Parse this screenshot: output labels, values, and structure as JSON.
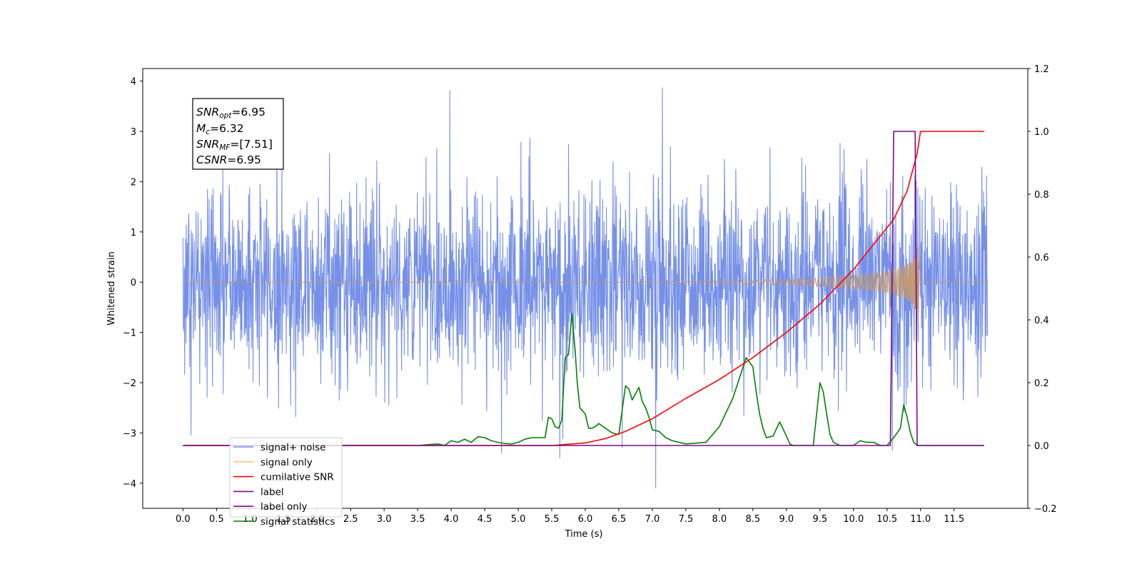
{
  "chart_data": {
    "type": "line",
    "xlabel": "Time (s)",
    "ylabel_left": "Whitened strain",
    "ylabel_right": "",
    "xlim": [
      -0.6,
      12.6
    ],
    "ylim_left": [
      -4.5,
      4.25
    ],
    "ylim_right": [
      -0.2,
      1.2
    ],
    "x_ticks": [
      "0.0",
      "0.5",
      "1.0",
      "1.5",
      "2.0",
      "2.5",
      "3.0",
      "3.5",
      "4.0",
      "4.5",
      "5.0",
      "5.5",
      "6.0",
      "6.5",
      "7.0",
      "7.5",
      "8.0",
      "8.5",
      "9.0",
      "9.5",
      "10.0",
      "10.5",
      "11.0",
      "11.5"
    ],
    "y_ticks_left": [
      "4",
      "3",
      "2",
      "1",
      "0",
      "−1",
      "−2",
      "−3",
      "−4"
    ],
    "y_ticks_right": [
      "1.2",
      "1.0",
      "0.8",
      "0.6",
      "0.4",
      "0.2",
      "0.0",
      "−0.2"
    ],
    "grid": false,
    "legend_position": "lower-left",
    "annotation": {
      "snr_opt": {
        "symbol": "SNR",
        "sub": "opt",
        "value": "=6.95"
      },
      "mc": {
        "symbol": "M",
        "sub": "c",
        "value": "=6.32"
      },
      "snr_mf": {
        "symbol": "SNR",
        "sub": "MF",
        "value": "=[7.51]"
      },
      "csnr": {
        "symbol": "CSNR",
        "sub": "",
        "value": "=6.95"
      }
    },
    "series": [
      {
        "name": "signal+ noise",
        "axis": "left",
        "color": "#6a87e6",
        "style": "noise",
        "x_range": [
          0.0,
          12.0
        ],
        "amplitude_envelope": [
          -3.3,
          3.8
        ],
        "outliers": [
          [
            0.12,
            -3.05
          ],
          [
            3.98,
            3.82
          ],
          [
            4.75,
            -3.4
          ],
          [
            5.62,
            -3.5
          ],
          [
            6.55,
            -3.3
          ],
          [
            7.05,
            -4.1
          ],
          [
            7.15,
            3.87
          ],
          [
            10.58,
            -3.35
          ]
        ]
      },
      {
        "name": "signal only",
        "axis": "left",
        "color": "#c49a6c",
        "style": "chirp",
        "x_range": [
          0.0,
          12.0
        ],
        "merger_time": 10.97,
        "envelope": {
          "x": [
            0.0,
            6.0,
            7.0,
            8.0,
            9.0,
            9.5,
            10.0,
            10.3,
            10.5,
            10.7,
            10.85,
            10.95,
            10.97,
            10.98,
            12.0
          ],
          "amp": [
            0.0,
            0.0,
            0.01,
            0.03,
            0.06,
            0.09,
            0.14,
            0.18,
            0.22,
            0.3,
            0.4,
            0.62,
            0.9,
            0.0,
            0.0
          ]
        }
      },
      {
        "name": "cumilative SNR",
        "axis": "right",
        "color": "#ff0000",
        "x": [
          0.0,
          5.5,
          6.0,
          6.3,
          6.6,
          7.0,
          7.5,
          8.0,
          8.5,
          9.0,
          9.5,
          10.0,
          10.3,
          10.6,
          10.8,
          10.95,
          11.0,
          11.5,
          11.95
        ],
        "y": [
          0.0,
          0.0,
          0.008,
          0.022,
          0.045,
          0.085,
          0.15,
          0.21,
          0.28,
          0.36,
          0.45,
          0.56,
          0.64,
          0.72,
          0.81,
          0.93,
          1.0,
          1.0,
          1.0
        ]
      },
      {
        "name": "label",
        "axis": "right",
        "color": "#7b0a8a",
        "x": [
          0.0,
          10.55,
          10.6,
          10.92,
          10.95,
          11.0,
          11.95
        ],
        "y": [
          0.0,
          0.0,
          1.0,
          1.0,
          0.0,
          0.0,
          0.0
        ]
      },
      {
        "name": "label only",
        "axis": "right",
        "color": "#7b0a8a",
        "hidden": true
      },
      {
        "name": "signal statistics",
        "axis": "right",
        "color": "#008000",
        "x": [
          0.0,
          3.5,
          3.8,
          3.9,
          4.0,
          4.1,
          4.2,
          4.3,
          4.4,
          4.5,
          4.6,
          4.7,
          4.8,
          4.9,
          5.0,
          5.1,
          5.2,
          5.3,
          5.4,
          5.45,
          5.5,
          5.55,
          5.6,
          5.65,
          5.7,
          5.75,
          5.8,
          5.85,
          5.88,
          5.92,
          6.0,
          6.05,
          6.1,
          6.15,
          6.2,
          6.3,
          6.4,
          6.5,
          6.6,
          6.65,
          6.7,
          6.75,
          6.8,
          6.85,
          6.9,
          6.95,
          7.0,
          7.1,
          7.15,
          7.2,
          7.3,
          7.5,
          7.8,
          8.0,
          8.2,
          8.4,
          8.5,
          8.55,
          8.6,
          8.65,
          8.7,
          8.8,
          8.9,
          9.0,
          9.05,
          9.1,
          9.2,
          9.3,
          9.4,
          9.5,
          9.55,
          9.6,
          9.65,
          9.7,
          9.75,
          9.8,
          9.9,
          10.0,
          10.1,
          10.2,
          10.3,
          10.4,
          10.5,
          10.6,
          10.7,
          10.75,
          10.8,
          10.85,
          10.9,
          10.95,
          11.0,
          11.5,
          11.95
        ],
        "y": [
          0.0,
          0.0,
          0.005,
          0.0,
          0.015,
          0.01,
          0.02,
          0.01,
          0.028,
          0.025,
          0.015,
          0.01,
          0.006,
          0.005,
          0.01,
          0.02,
          0.025,
          0.025,
          0.025,
          0.09,
          0.085,
          0.06,
          0.055,
          0.08,
          0.28,
          0.29,
          0.42,
          0.3,
          0.2,
          0.12,
          0.1,
          0.055,
          0.055,
          0.06,
          0.07,
          0.055,
          0.04,
          0.035,
          0.19,
          0.18,
          0.145,
          0.165,
          0.185,
          0.14,
          0.12,
          0.09,
          0.05,
          0.045,
          0.035,
          0.025,
          0.015,
          0.005,
          0.01,
          0.06,
          0.15,
          0.28,
          0.25,
          0.17,
          0.1,
          0.055,
          0.025,
          0.03,
          0.075,
          0.03,
          0.005,
          0.0,
          0.0,
          0.0,
          0.0,
          0.2,
          0.17,
          0.1,
          0.035,
          0.01,
          0.005,
          0.0,
          0.0,
          0.0,
          0.015,
          0.01,
          0.01,
          0.0,
          0.0,
          0.025,
          0.055,
          0.13,
          0.09,
          0.04,
          0.01,
          0.0,
          0.0,
          0.0,
          0.0
        ]
      }
    ]
  }
}
